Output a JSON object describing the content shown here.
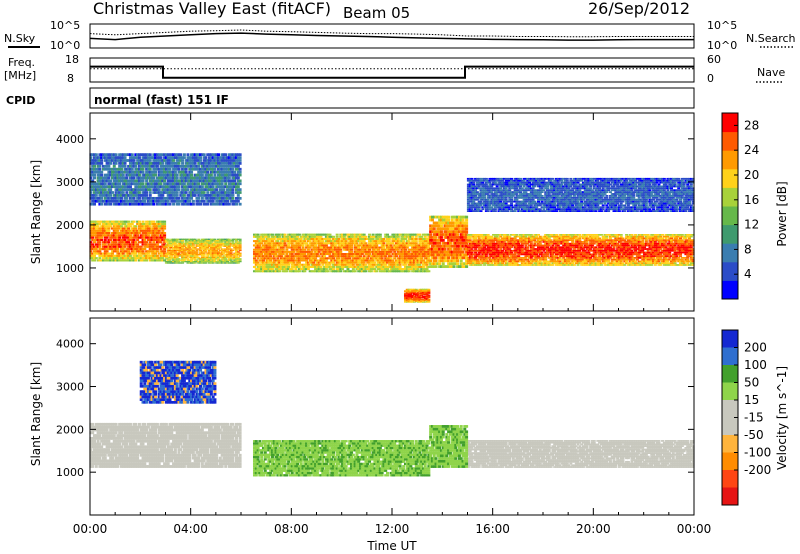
{
  "header": {
    "station": "Christmas Valley East (fitACF)",
    "beam": "Beam 05",
    "date": "26/Sep/2012"
  },
  "colors": {
    "power_scale": [
      "#0000ff",
      "#2b4cc8",
      "#3a7db0",
      "#3f9a6e",
      "#66b84a",
      "#a8d23a",
      "#ffd21a",
      "#ff9a00",
      "#ff5a00",
      "#ff0000"
    ],
    "velocity_scale": [
      "#1428d2",
      "#2f6fd0",
      "#42a02c",
      "#8fd44a",
      "#c8c8be",
      "#c8c8be",
      "#ffb43c",
      "#ff8c00",
      "#ff4614",
      "#e61414"
    ],
    "groundscatter": "#c8c8be",
    "line": "#000000"
  },
  "chart_data": [
    {
      "type": "line",
      "panel": "noise",
      "left_label": "N.Sky",
      "right_label": "N.Search",
      "yticks_left": [
        "10^5",
        "10^0"
      ],
      "yticks_right": [
        "10^5",
        "10^0"
      ],
      "x_hours": [
        0,
        1,
        2,
        3,
        4,
        5,
        6,
        7,
        8,
        9,
        10,
        11,
        12,
        13,
        14,
        15,
        16,
        17,
        18,
        19,
        20,
        21,
        22,
        23,
        24
      ],
      "series": [
        {
          "values": [
            0.4,
            0.35,
            0.45,
            0.5,
            0.55,
            0.6,
            0.62,
            0.58,
            0.55,
            0.52,
            0.5,
            0.48,
            0.45,
            0.42,
            0.4,
            0.38,
            0.36,
            0.35,
            0.34,
            0.33,
            0.33,
            0.34,
            0.35,
            0.35,
            0.35
          ]
        },
        {
          "values": [
            0.6,
            0.55,
            0.6,
            0.65,
            0.7,
            0.72,
            0.75,
            0.7,
            0.68,
            0.65,
            0.62,
            0.6,
            0.6,
            0.58,
            0.55,
            0.5,
            0.5,
            0.48,
            0.48,
            0.47,
            0.47,
            0.48,
            0.48,
            0.48,
            0.48
          ]
        }
      ]
    },
    {
      "type": "line",
      "panel": "frequency",
      "left_label": "Freq.",
      "left_unit": "[MHz]",
      "right_label": "Nave",
      "ylim_left": [
        8,
        18
      ],
      "yticks_left": [
        "18",
        "8"
      ],
      "yticks_right": [
        "60",
        "0"
      ],
      "steps": [
        {
          "from": 0,
          "to": 2.9,
          "value": 14.4
        },
        {
          "from": 2.9,
          "to": 14.9,
          "value": 9.8
        },
        {
          "from": 14.9,
          "to": 24,
          "value": 14.4
        }
      ],
      "nave_level": 0.55
    },
    {
      "type": "text",
      "panel": "cpid",
      "label": "CPID",
      "text": "normal (fast) 151 IF"
    },
    {
      "type": "heatmap",
      "panel": "power",
      "ylabel": "Slant Range [km]",
      "xlabel": "Time UT",
      "xlim": [
        0,
        24
      ],
      "ylim": [
        0,
        4600
      ],
      "yticks": [
        1000,
        2000,
        3000,
        4000
      ],
      "xticks": [
        "00:00",
        "04:00",
        "08:00",
        "12:00",
        "16:00",
        "20:00",
        "00:00"
      ],
      "colorbar_label": "Power [dB]",
      "colorbar_ticks": [
        4,
        8,
        12,
        16,
        20,
        24,
        28
      ],
      "colorbar_range": [
        0,
        30
      ],
      "regions": [
        {
          "t": [
            0,
            3
          ],
          "range": [
            1150,
            2050
          ],
          "peak_db": 26
        },
        {
          "t": [
            3,
            6
          ],
          "range": [
            1100,
            1650
          ],
          "peak_db": 22
        },
        {
          "t": [
            0,
            6
          ],
          "range": [
            2450,
            3600
          ],
          "peak_db": 8
        },
        {
          "t": [
            6.5,
            13.5
          ],
          "range": [
            900,
            1750
          ],
          "peak_db": 24
        },
        {
          "t": [
            13.5,
            15
          ],
          "range": [
            1000,
            2150
          ],
          "peak_db": 26
        },
        {
          "t": [
            15,
            24
          ],
          "range": [
            1050,
            1750
          ],
          "peak_db": 28
        },
        {
          "t": [
            15,
            24
          ],
          "range": [
            2300,
            3050
          ],
          "peak_db": 6
        },
        {
          "t": [
            12.5,
            13.5
          ],
          "range": [
            200,
            500
          ],
          "peak_db": 28
        }
      ]
    },
    {
      "type": "heatmap",
      "panel": "velocity",
      "ylabel": "Slant Range [km]",
      "xlabel": "Time UT",
      "xlim": [
        0,
        24
      ],
      "ylim": [
        0,
        4600
      ],
      "yticks": [
        1000,
        2000,
        3000,
        4000
      ],
      "xticks": [
        "00:00",
        "04:00",
        "08:00",
        "12:00",
        "16:00",
        "20:00",
        "00:00"
      ],
      "colorbar_label": "Velocity [m s^-1]",
      "colorbar_ticks": [
        200,
        100,
        50,
        15,
        -15,
        -50,
        -100,
        -200
      ],
      "regions": [
        {
          "t": [
            0,
            6
          ],
          "range": [
            1100,
            2150
          ],
          "class": "groundscatter"
        },
        {
          "t": [
            6.5,
            13.5
          ],
          "range": [
            900,
            1750
          ],
          "class": "positive_small"
        },
        {
          "t": [
            15,
            24
          ],
          "range": [
            1100,
            1750
          ],
          "class": "groundscatter"
        },
        {
          "t": [
            2,
            5
          ],
          "range": [
            2600,
            3600
          ],
          "class": "positive_large"
        },
        {
          "t": [
            13.5,
            15
          ],
          "range": [
            1100,
            2100
          ],
          "class": "positive_small"
        }
      ]
    }
  ]
}
